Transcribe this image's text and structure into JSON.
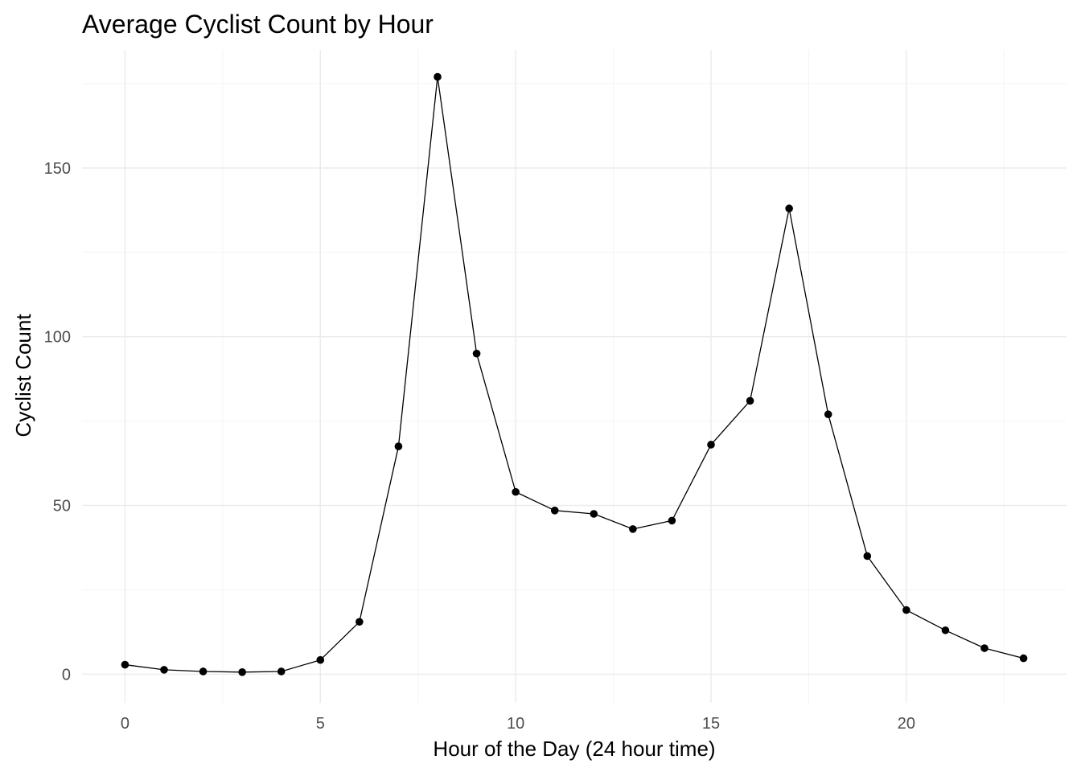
{
  "chart_data": {
    "type": "line",
    "title": "Average Cyclist Count by Hour",
    "xlabel": "Hour of the Day (24 hour time)",
    "ylabel": "Cyclist Count",
    "x": [
      0,
      1,
      2,
      3,
      4,
      5,
      6,
      7,
      8,
      9,
      10,
      11,
      12,
      13,
      14,
      15,
      16,
      17,
      18,
      19,
      20,
      21,
      22,
      23
    ],
    "series": [
      {
        "values": [
          2.8,
          1.3,
          0.8,
          0.6,
          0.8,
          4.2,
          15.5,
          67.5,
          177,
          95,
          54,
          48.5,
          47.5,
          43,
          45.5,
          68,
          81,
          138,
          77,
          35,
          19,
          13,
          7.7,
          4.7
        ],
        "color": "#000000"
      }
    ],
    "xlim": [
      -1.1,
      24.1
    ],
    "ylim": [
      -8.5,
      185
    ],
    "x_ticks": [
      "0",
      "5",
      "10",
      "15",
      "20"
    ],
    "y_ticks": [
      "0",
      "50",
      "100",
      "150"
    ],
    "grid": true,
    "legend": "none"
  }
}
